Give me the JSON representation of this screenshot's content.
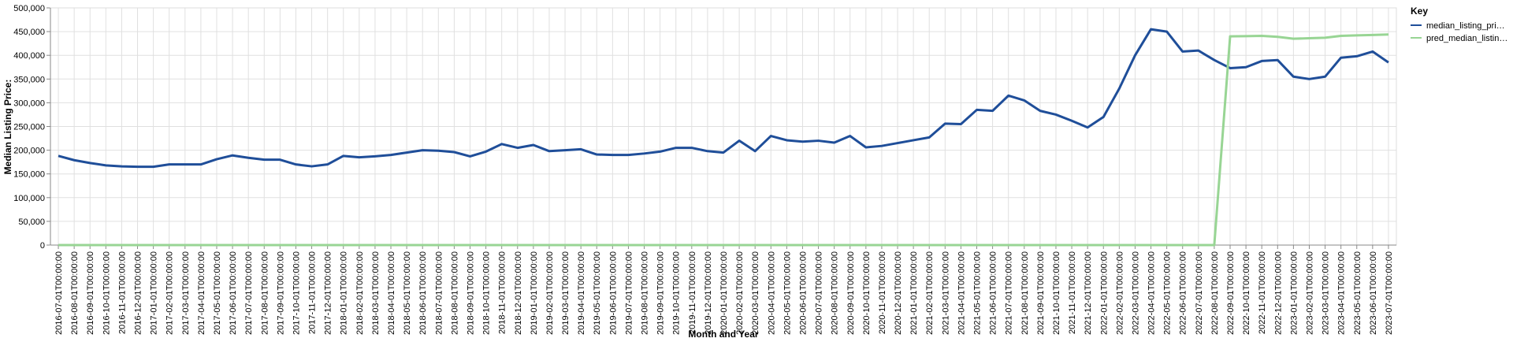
{
  "chart_data": {
    "type": "line",
    "x_label": "Month and Year",
    "y_label": "Median Listing Price:",
    "legend_title": "Key",
    "legend_position": "right",
    "grid": true,
    "categories": [
      "2016-07-01T00:00:00",
      "2016-08-01T00:00:00",
      "2016-09-01T00:00:00",
      "2016-10-01T00:00:00",
      "2016-11-01T00:00:00",
      "2016-12-01T00:00:00",
      "2017-01-01T00:00:00",
      "2017-02-01T00:00:00",
      "2017-03-01T00:00:00",
      "2017-04-01T00:00:00",
      "2017-05-01T00:00:00",
      "2017-06-01T00:00:00",
      "2017-07-01T00:00:00",
      "2017-08-01T00:00:00",
      "2017-09-01T00:00:00",
      "2017-10-01T00:00:00",
      "2017-11-01T00:00:00",
      "2017-12-01T00:00:00",
      "2018-01-01T00:00:00",
      "2018-02-01T00:00:00",
      "2018-03-01T00:00:00",
      "2018-04-01T00:00:00",
      "2018-05-01T00:00:00",
      "2018-06-01T00:00:00",
      "2018-07-01T00:00:00",
      "2018-08-01T00:00:00",
      "2018-09-01T00:00:00",
      "2018-10-01T00:00:00",
      "2018-11-01T00:00:00",
      "2018-12-01T00:00:00",
      "2019-01-01T00:00:00",
      "2019-02-01T00:00:00",
      "2019-03-01T00:00:00",
      "2019-04-01T00:00:00",
      "2019-05-01T00:00:00",
      "2019-06-01T00:00:00",
      "2019-07-01T00:00:00",
      "2019-08-01T00:00:00",
      "2019-09-01T00:00:00",
      "2019-10-01T00:00:00",
      "2019-11-01T00:00:00",
      "2019-12-01T00:00:00",
      "2020-01-01T00:00:00",
      "2020-02-01T00:00:00",
      "2020-03-01T00:00:00",
      "2020-04-01T00:00:00",
      "2020-05-01T00:00:00",
      "2020-06-01T00:00:00",
      "2020-07-01T00:00:00",
      "2020-08-01T00:00:00",
      "2020-09-01T00:00:00",
      "2020-10-01T00:00:00",
      "2020-11-01T00:00:00",
      "2020-12-01T00:00:00",
      "2021-01-01T00:00:00",
      "2021-02-01T00:00:00",
      "2021-03-01T00:00:00",
      "2021-04-01T00:00:00",
      "2021-05-01T00:00:00",
      "2021-06-01T00:00:00",
      "2021-07-01T00:00:00",
      "2021-08-01T00:00:00",
      "2021-09-01T00:00:00",
      "2021-10-01T00:00:00",
      "2021-11-01T00:00:00",
      "2021-12-01T00:00:00",
      "2022-01-01T00:00:00",
      "2022-02-01T00:00:00",
      "2022-03-01T00:00:00",
      "2022-04-01T00:00:00",
      "2022-05-01T00:00:00",
      "2022-06-01T00:00:00",
      "2022-07-01T00:00:00",
      "2022-08-01T00:00:00",
      "2022-09-01T00:00:00",
      "2022-10-01T00:00:00",
      "2022-11-01T00:00:00",
      "2022-12-01T00:00:00",
      "2023-01-01T00:00:00",
      "2023-02-01T00:00:00",
      "2023-03-01T00:00:00",
      "2023-04-01T00:00:00",
      "2023-05-01T00:00:00",
      "2023-06-01T00:00:00",
      "2023-07-01T00:00:00"
    ],
    "series": [
      {
        "name": "median_listing_pri…",
        "color": "#1f4e99",
        "values": [
          188000,
          179000,
          173000,
          168000,
          166000,
          165000,
          165000,
          170000,
          170000,
          170000,
          181000,
          189000,
          184000,
          180000,
          180000,
          170000,
          166000,
          170000,
          188000,
          185000,
          187000,
          190000,
          195000,
          200000,
          199000,
          196000,
          187000,
          197000,
          213000,
          205000,
          211000,
          198000,
          200000,
          202000,
          191000,
          190000,
          190000,
          193000,
          197000,
          205000,
          205000,
          198000,
          195000,
          220000,
          198000,
          230000,
          221000,
          218000,
          220000,
          216000,
          230000,
          206000,
          209000,
          215000,
          221000,
          227000,
          256000,
          255000,
          285000,
          283000,
          315000,
          305000,
          283000,
          275000,
          262000,
          248000,
          270000,
          330000,
          400000,
          455000,
          450000,
          408000,
          410000,
          390000,
          373000,
          375000,
          388000,
          390000,
          355000,
          350000,
          355000,
          395000,
          398000,
          408000,
          385000
        ]
      },
      {
        "name": "pred_median_listin…",
        "color": "#98d594",
        "values": [
          0,
          0,
          0,
          0,
          0,
          0,
          0,
          0,
          0,
          0,
          0,
          0,
          0,
          0,
          0,
          0,
          0,
          0,
          0,
          0,
          0,
          0,
          0,
          0,
          0,
          0,
          0,
          0,
          0,
          0,
          0,
          0,
          0,
          0,
          0,
          0,
          0,
          0,
          0,
          0,
          0,
          0,
          0,
          0,
          0,
          0,
          0,
          0,
          0,
          0,
          0,
          0,
          0,
          0,
          0,
          0,
          0,
          0,
          0,
          0,
          0,
          0,
          0,
          0,
          0,
          0,
          0,
          0,
          0,
          0,
          0,
          0,
          0,
          0,
          440000,
          440500,
          441000,
          439000,
          435000,
          436000,
          437000,
          441000,
          442000,
          443000,
          444000
        ]
      }
    ],
    "ylim": [
      0,
      500000
    ],
    "yticks": [
      0,
      {
        "value": 50000,
        "label": "50,000"
      },
      {
        "value": 100000,
        "label": "100,000"
      },
      {
        "value": 150000,
        "label": "150,000"
      },
      {
        "value": 200000,
        "label": "200,000"
      },
      {
        "value": 250000,
        "label": "250,000"
      },
      {
        "value": 300000,
        "label": "300,000"
      },
      {
        "value": 350000,
        "label": "350,000"
      },
      {
        "value": 400000,
        "label": "400,000"
      },
      {
        "value": 450000,
        "label": "450,000"
      },
      {
        "value": 500000,
        "label": "500,000"
      }
    ]
  }
}
